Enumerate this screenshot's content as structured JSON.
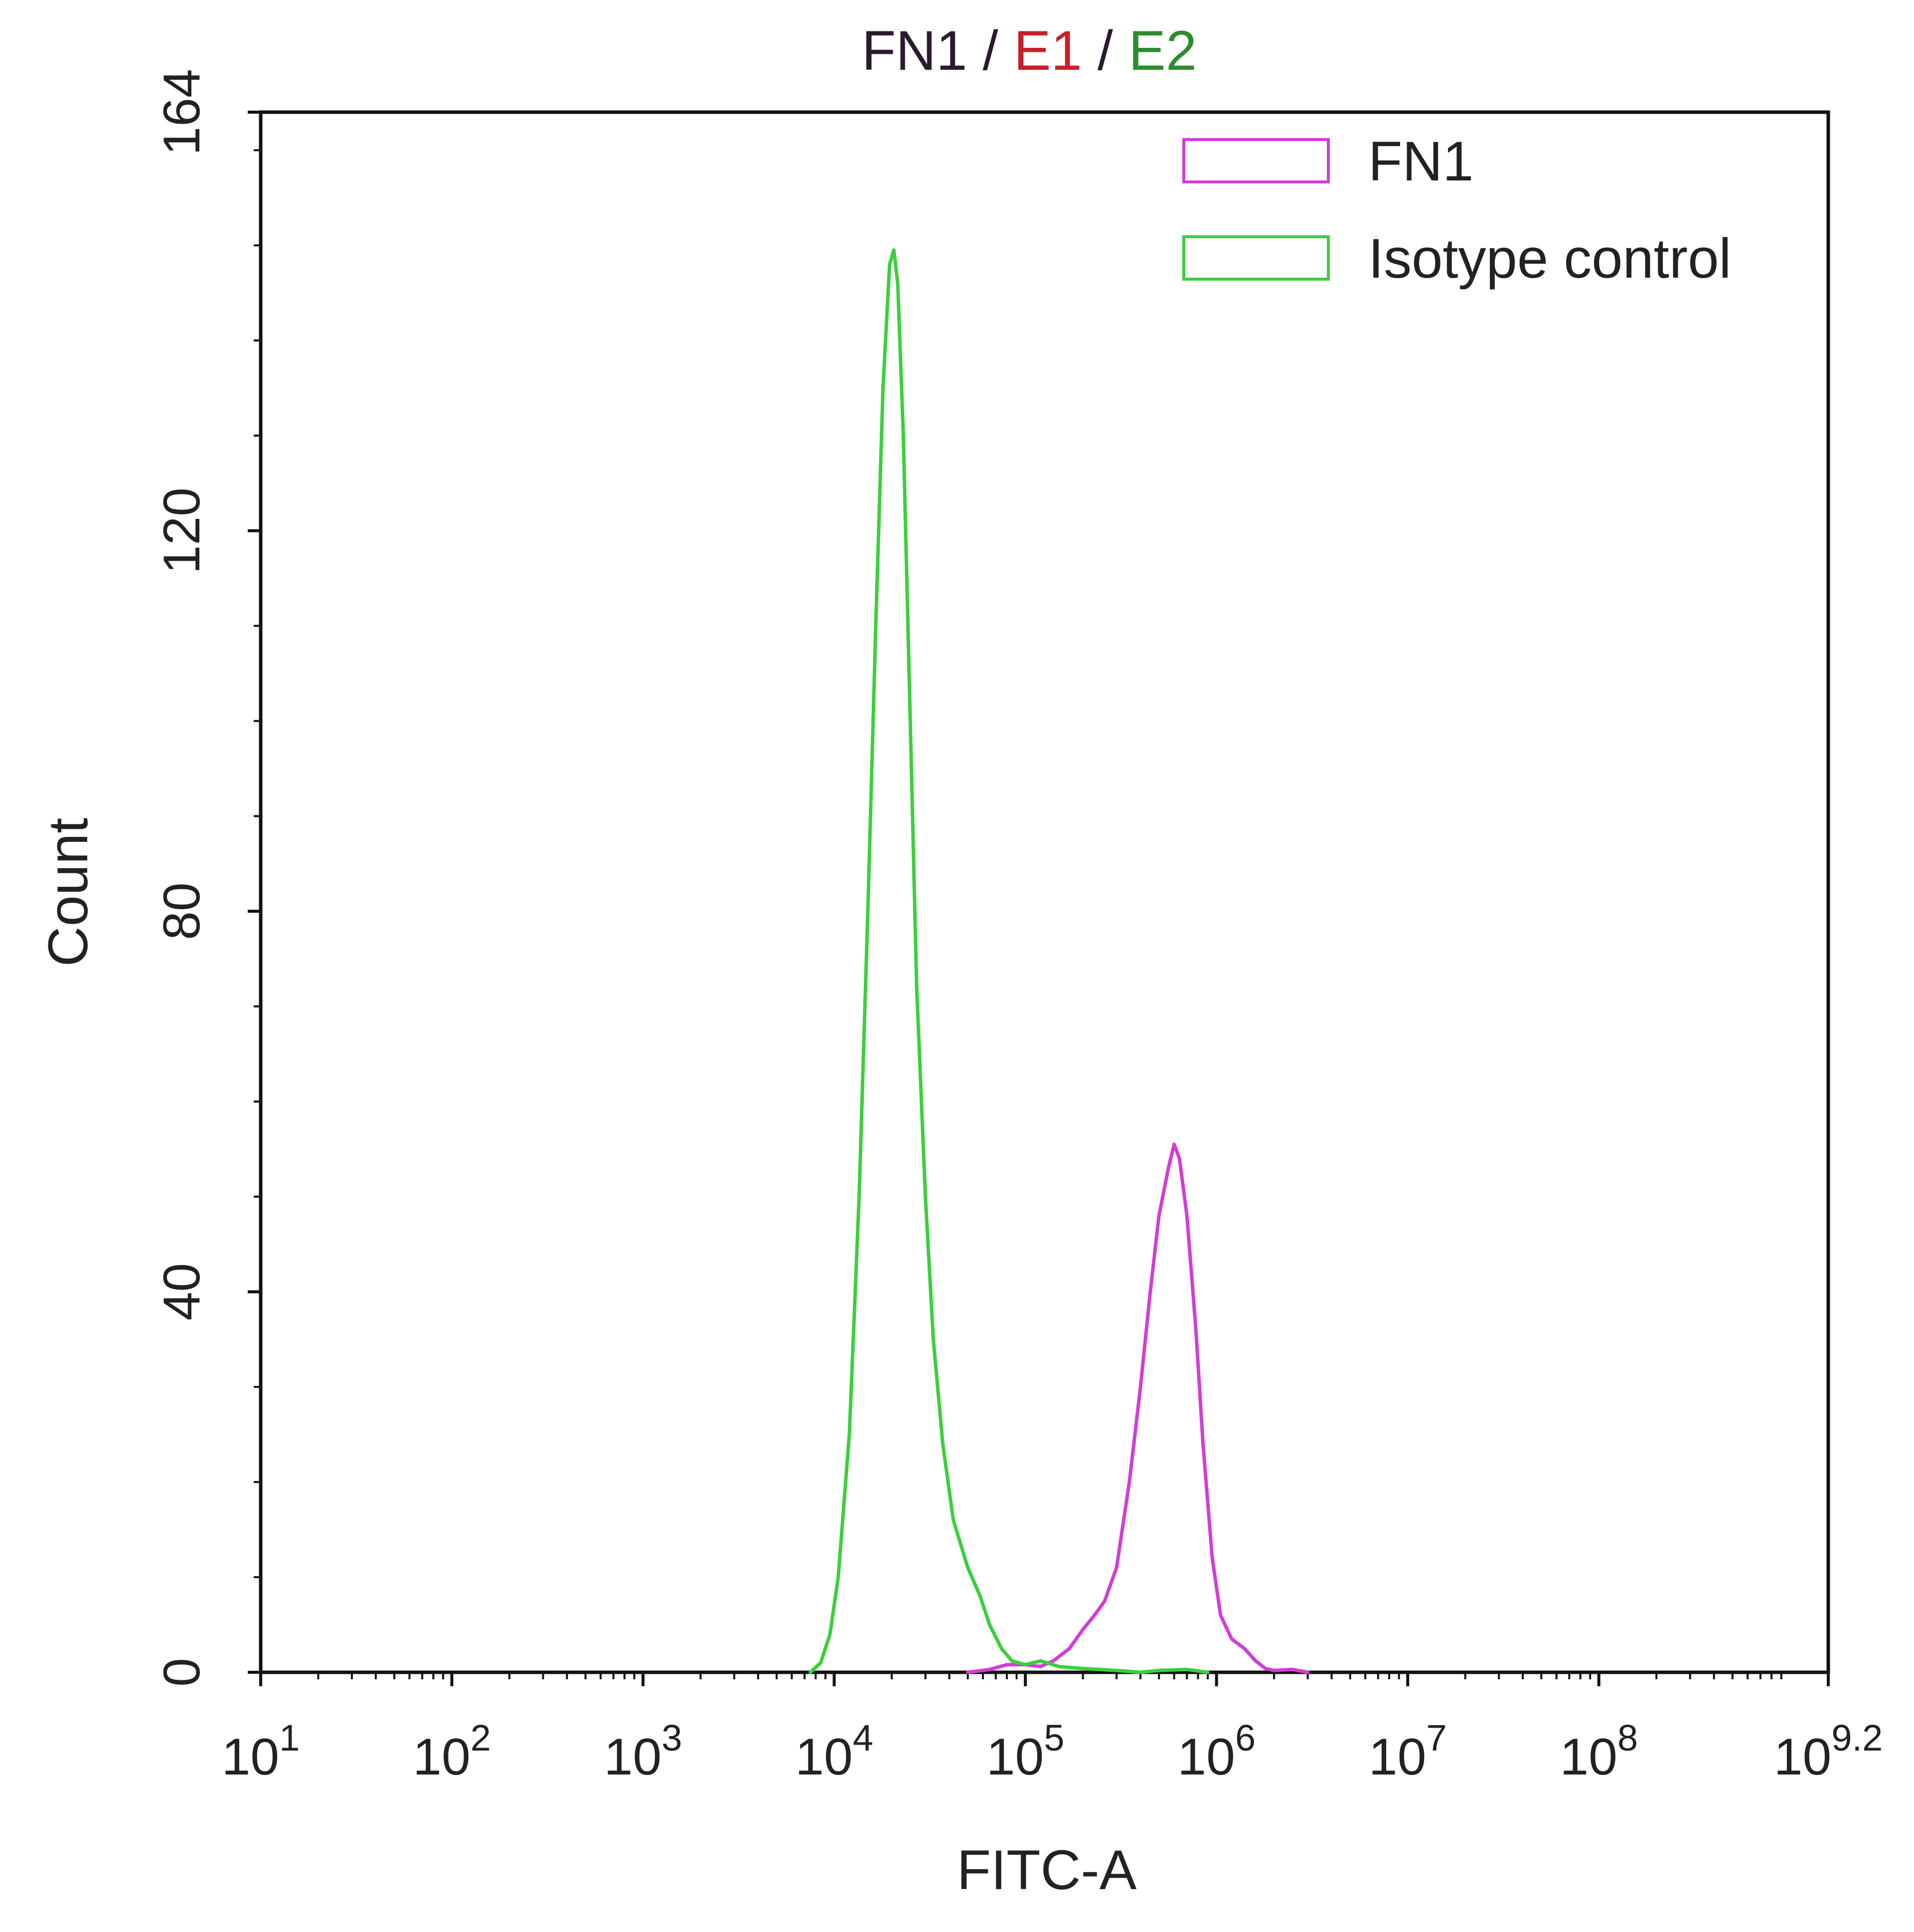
{
  "title_parts": [
    {
      "text": "FN1",
      "color": "#2b1a2e"
    },
    {
      "text": " / ",
      "color": "#2b1a2e"
    },
    {
      "text": "E1",
      "color": "#c8202a"
    },
    {
      "text": " / ",
      "color": "#2b1a2e"
    },
    {
      "text": "E2",
      "color": "#2e8b2e"
    }
  ],
  "chart_data": {
    "type": "line",
    "title": "FN1 / E1 / E2",
    "xlabel": "FITC-A",
    "ylabel": "Count",
    "x_scale": "log10",
    "xlim": [
      10,
      1584893192
    ],
    "ylim": [
      0,
      164
    ],
    "grid": false,
    "legend_position": "top-right",
    "x_ticks": [
      {
        "value": 10,
        "base": "10",
        "exp": "1"
      },
      {
        "value": 100,
        "base": "10",
        "exp": "2"
      },
      {
        "value": 1000,
        "base": "10",
        "exp": "3"
      },
      {
        "value": 10000,
        "base": "10",
        "exp": "4"
      },
      {
        "value": 100000,
        "base": "10",
        "exp": "5"
      },
      {
        "value": 1000000,
        "base": "10",
        "exp": "6"
      },
      {
        "value": 10000000,
        "base": "10",
        "exp": "7"
      },
      {
        "value": 100000000,
        "base": "10",
        "exp": "8"
      },
      {
        "value": 1584893192,
        "base": "10",
        "exp": "9.2"
      }
    ],
    "y_ticks": [
      "0",
      "40",
      "80",
      "120",
      "164"
    ],
    "series": [
      {
        "name": "FN1",
        "color": "#d13ed6",
        "points": [
          [
            50000,
            0
          ],
          [
            65000,
            0.3
          ],
          [
            80000,
            0.8
          ],
          [
            100000,
            0.8
          ],
          [
            120000,
            0.6
          ],
          [
            140000,
            1.2
          ],
          [
            170000,
            2.5
          ],
          [
            200000,
            4.5
          ],
          [
            230000,
            6
          ],
          [
            260000,
            7.5
          ],
          [
            300000,
            11
          ],
          [
            350000,
            20
          ],
          [
            400000,
            30
          ],
          [
            450000,
            40
          ],
          [
            500000,
            48
          ],
          [
            560000,
            53
          ],
          [
            600000,
            55.5
          ],
          [
            640000,
            54
          ],
          [
            700000,
            48
          ],
          [
            780000,
            36
          ],
          [
            850000,
            24
          ],
          [
            950000,
            12
          ],
          [
            1050000,
            6
          ],
          [
            1200000,
            3.5
          ],
          [
            1400000,
            2.5
          ],
          [
            1600000,
            1.2
          ],
          [
            1800000,
            0.4
          ],
          [
            2000000,
            0.2
          ],
          [
            2500000,
            0.3
          ],
          [
            3000000,
            0
          ]
        ]
      },
      {
        "name": "Isotype control",
        "color": "#3ccf3c",
        "points": [
          [
            7500,
            0
          ],
          [
            8500,
            1
          ],
          [
            9500,
            4
          ],
          [
            10500,
            10
          ],
          [
            12000,
            25
          ],
          [
            13500,
            50
          ],
          [
            15000,
            80
          ],
          [
            16500,
            110
          ],
          [
            18000,
            135
          ],
          [
            19500,
            148
          ],
          [
            20500,
            149.5
          ],
          [
            21500,
            146
          ],
          [
            23000,
            130
          ],
          [
            25000,
            100
          ],
          [
            27000,
            72
          ],
          [
            30000,
            50
          ],
          [
            33000,
            35
          ],
          [
            37000,
            24
          ],
          [
            42000,
            16
          ],
          [
            50000,
            11
          ],
          [
            58000,
            8
          ],
          [
            65000,
            5
          ],
          [
            75000,
            2.5
          ],
          [
            85000,
            1.2
          ],
          [
            100000,
            0.8
          ],
          [
            120000,
            1.2
          ],
          [
            150000,
            0.6
          ],
          [
            200000,
            0.4
          ],
          [
            300000,
            0.2
          ],
          [
            400000,
            0
          ],
          [
            500000,
            0.2
          ],
          [
            700000,
            0.3
          ],
          [
            900000,
            0
          ]
        ]
      }
    ]
  }
}
